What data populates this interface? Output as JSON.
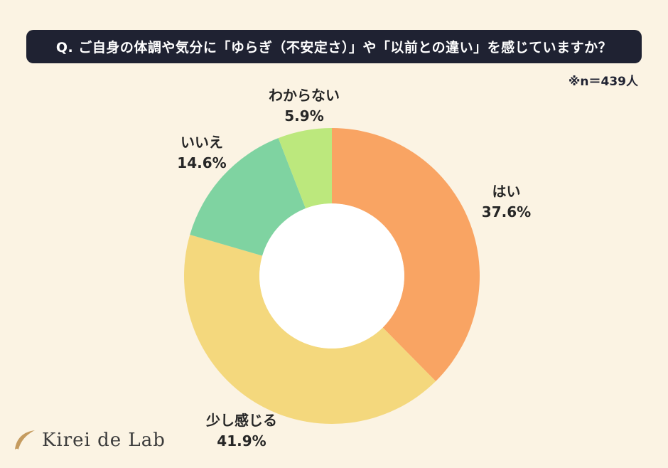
{
  "header": {
    "question": "Q. ご自身の体調や気分に「ゆらぎ（不安定さ）」や「以前との違い」を感じていますか？",
    "sample_note": "※n＝439人"
  },
  "chart_data": {
    "type": "pie",
    "subtype": "donut",
    "title": "ご自身の体調や気分に「ゆらぎ（不安定さ）」や「以前との違い」を感じていますか？",
    "sample_size": 439,
    "categories": [
      "はい",
      "少し感じる",
      "いいえ",
      "わからない"
    ],
    "values": [
      37.6,
      41.9,
      14.6,
      5.9
    ],
    "labels": [
      "37.6%",
      "41.9%",
      "14.6%",
      "5.9%"
    ],
    "colors": [
      "#F9A463",
      "#F4D87D",
      "#7FD3A1",
      "#BCE87D"
    ],
    "start_angle_deg": 0,
    "direction": "clockwise",
    "inner_radius_ratio": 0.49,
    "hole_color": "#FFFFFF",
    "legend_position": "outside-labels"
  },
  "logo": {
    "text": "Kirei de Lab"
  },
  "colors": {
    "background": "#FBF3E3",
    "banner_bg": "#1F2232",
    "banner_text": "#FFFFFF",
    "label_text": "#262626",
    "logo_text": "#3B3B3B",
    "logo_icon": "#C59B5F"
  }
}
